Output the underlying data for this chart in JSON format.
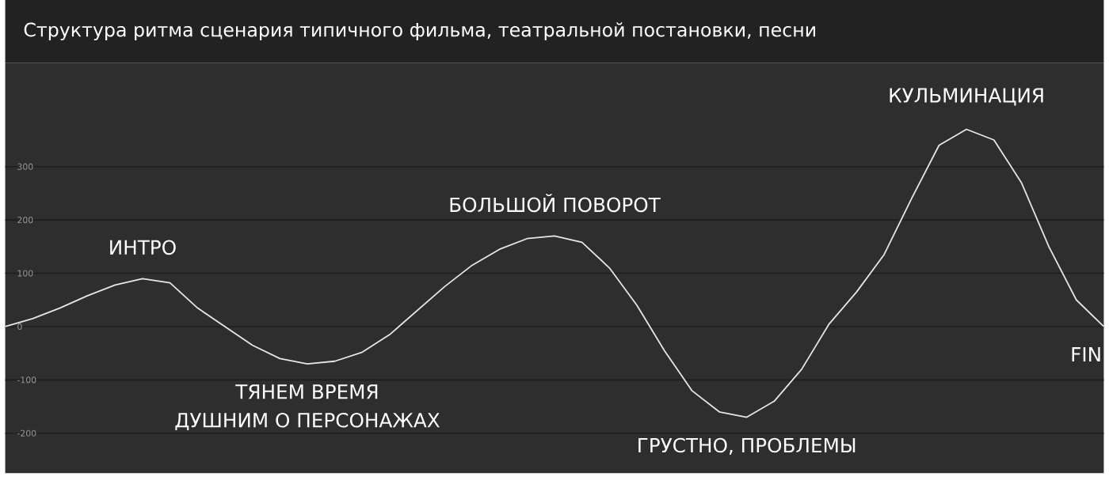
{
  "chart_data": {
    "type": "line",
    "title": "Структура ритма сценария типичного фильма, театральной постановки, песни",
    "categories": [
      null,
      null,
      null,
      null,
      null,
      null,
      null,
      null,
      null,
      null,
      null,
      null,
      null,
      null,
      null,
      null,
      null,
      null,
      null,
      null,
      null,
      null,
      null,
      null,
      null,
      null,
      null,
      null,
      null,
      null,
      null,
      null,
      null,
      null,
      null,
      null,
      null,
      null,
      null,
      null,
      null
    ],
    "values": [
      0,
      15,
      35,
      58,
      78,
      90,
      82,
      35,
      0,
      -35,
      -60,
      -70,
      -65,
      -48,
      -15,
      30,
      75,
      115,
      145,
      165,
      170,
      158,
      110,
      40,
      -45,
      -120,
      -160,
      -170,
      -140,
      -80,
      5,
      65,
      135,
      240,
      340,
      370,
      350,
      270,
      150,
      50,
      0
    ],
    "color": "#e6e6e6",
    "grid": "y",
    "tick_labels": "y",
    "ylim": [
      -275,
      495
    ],
    "yticks": [
      -200,
      -100,
      0,
      100,
      200,
      300
    ],
    "annotations": [
      {
        "text": "ИНТРО",
        "y": 90
      },
      {
        "text": "ТЯНЕМ ВРЕМЯ",
        "y": -70
      },
      {
        "text": "ДУШНИМ О ПЕРСОНАЖАХ",
        "y": -70
      },
      {
        "text": "БОЛЬШОЙ ПОВОРОТ",
        "y": 170
      },
      {
        "text": "ГРУСТНО, ПРОБЛЕМЫ",
        "y": -170
      },
      {
        "text": "КУЛЬМИНАЦИЯ",
        "y": 370
      },
      "FIN"
    ]
  }
}
